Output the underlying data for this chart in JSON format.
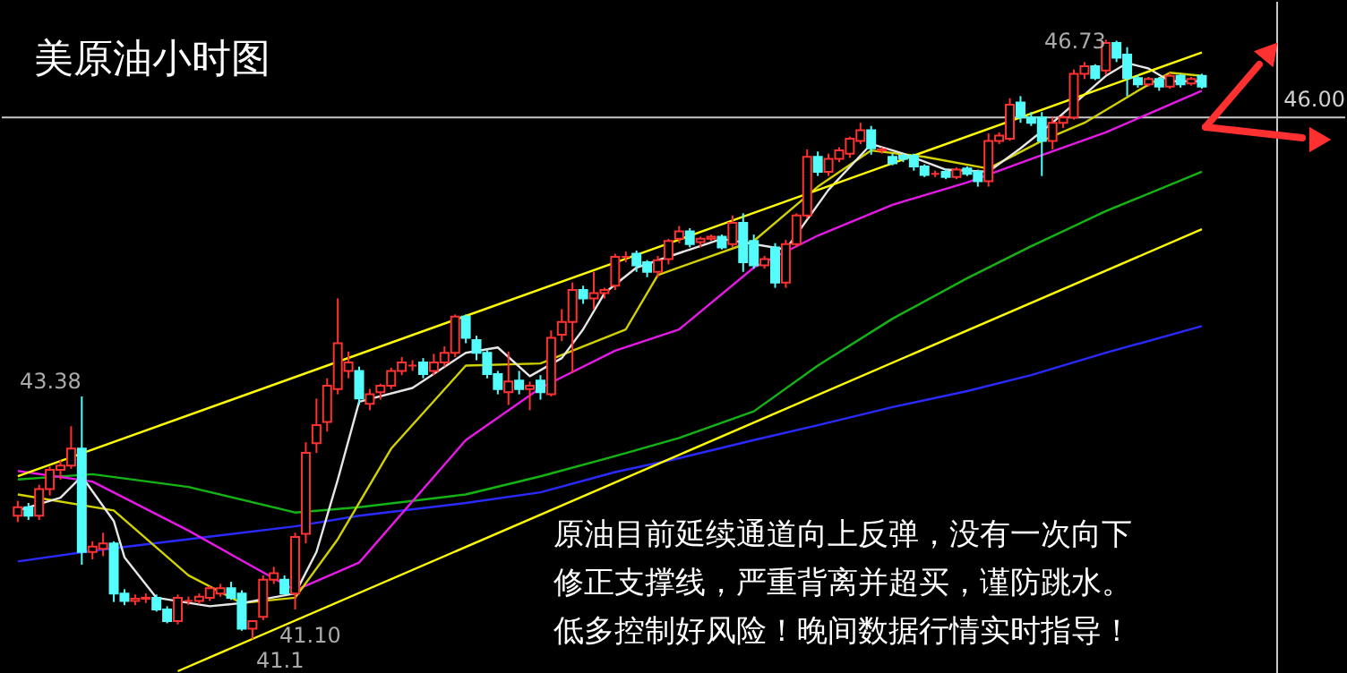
{
  "chart_data": {
    "type": "candlestick",
    "title": "美原油小时图",
    "categories": [
      null,
      null,
      null,
      null,
      null,
      null,
      null,
      null,
      null,
      null,
      null,
      null,
      null,
      null,
      null,
      null,
      null,
      null,
      null,
      null,
      null,
      null,
      null,
      null,
      null,
      null,
      null,
      null,
      null,
      null,
      null,
      null,
      null,
      null,
      null,
      null,
      null,
      null,
      null,
      null,
      null,
      null,
      null,
      null,
      null,
      null,
      null,
      null,
      null,
      null,
      null,
      null,
      null,
      null,
      null,
      null,
      null,
      null,
      null,
      null,
      null,
      null,
      null,
      null,
      null,
      null,
      null,
      null,
      null,
      null,
      null,
      null,
      null,
      null,
      null,
      null,
      null,
      null,
      null,
      null,
      null,
      null,
      null,
      null,
      null,
      null,
      null,
      null,
      null,
      null,
      null,
      null,
      null,
      null,
      null,
      null,
      null,
      null,
      null,
      null,
      null,
      null,
      null,
      null,
      null,
      null,
      null,
      null,
      null,
      null,
      null,
      null
    ],
    "ohlc": [
      [
        42.26,
        42.4,
        42.2,
        42.34
      ],
      [
        42.34,
        42.38,
        42.22,
        42.26
      ],
      [
        42.26,
        42.55,
        42.22,
        42.51
      ],
      [
        42.51,
        42.72,
        42.45,
        42.69
      ],
      [
        42.69,
        42.78,
        42.6,
        42.73
      ],
      [
        42.73,
        43.1,
        42.7,
        42.89
      ],
      [
        42.89,
        43.38,
        41.8,
        41.92
      ],
      [
        41.92,
        42.02,
        41.85,
        41.97
      ],
      [
        41.95,
        42.1,
        41.88,
        42.0
      ],
      [
        42.0,
        42.02,
        41.45,
        41.53
      ],
      [
        41.53,
        41.57,
        41.42,
        41.46
      ],
      [
        41.46,
        41.52,
        41.42,
        41.48
      ],
      [
        41.48,
        41.53,
        41.44,
        41.49
      ],
      [
        41.49,
        41.52,
        41.36,
        41.38
      ],
      [
        41.38,
        41.41,
        41.25,
        41.27
      ],
      [
        41.27,
        41.52,
        41.24,
        41.49
      ],
      [
        41.46,
        41.5,
        41.42,
        41.46
      ],
      [
        41.46,
        41.53,
        41.43,
        41.5
      ],
      [
        41.49,
        41.6,
        41.46,
        41.58
      ],
      [
        41.53,
        41.62,
        41.5,
        41.58
      ],
      [
        41.58,
        41.64,
        41.47,
        41.49
      ],
      [
        41.53,
        41.56,
        41.18,
        41.2
      ],
      [
        41.2,
        41.28,
        41.1,
        41.27
      ],
      [
        41.31,
        41.7,
        41.28,
        41.66
      ],
      [
        41.66,
        41.78,
        41.62,
        41.72
      ],
      [
        41.66,
        41.7,
        41.52,
        41.53
      ],
      [
        41.53,
        42.1,
        41.38,
        42.06
      ],
      [
        42.09,
        42.95,
        42.0,
        42.85
      ],
      [
        42.94,
        43.36,
        42.85,
        43.11
      ],
      [
        43.14,
        43.55,
        43.05,
        43.48
      ],
      [
        43.45,
        44.3,
        43.4,
        43.88
      ],
      [
        43.62,
        43.8,
        43.55,
        43.7
      ],
      [
        43.62,
        43.66,
        43.3,
        43.36
      ],
      [
        43.31,
        43.45,
        43.25,
        43.4
      ],
      [
        43.42,
        43.5,
        43.35,
        43.48
      ],
      [
        43.48,
        43.65,
        43.45,
        43.62
      ],
      [
        43.62,
        43.75,
        43.58,
        43.7
      ],
      [
        43.67,
        43.72,
        43.62,
        43.67
      ],
      [
        43.7,
        43.74,
        43.55,
        43.59
      ],
      [
        43.62,
        43.78,
        43.58,
        43.7
      ],
      [
        43.7,
        43.85,
        43.66,
        43.79
      ],
      [
        43.79,
        44.15,
        43.75,
        44.13
      ],
      [
        44.13,
        44.15,
        43.88,
        43.93
      ],
      [
        43.91,
        43.95,
        43.72,
        43.79
      ],
      [
        43.79,
        43.82,
        43.55,
        43.59
      ],
      [
        43.59,
        43.62,
        43.4,
        43.45
      ],
      [
        43.42,
        43.8,
        43.3,
        43.52
      ],
      [
        43.53,
        43.62,
        43.4,
        43.45
      ],
      [
        43.45,
        43.52,
        43.25,
        43.48
      ],
      [
        43.53,
        43.58,
        43.35,
        43.42
      ],
      [
        43.4,
        44.0,
        43.38,
        43.93
      ],
      [
        43.96,
        44.2,
        43.9,
        44.08
      ],
      [
        44.08,
        44.45,
        43.6,
        44.38
      ],
      [
        44.38,
        44.42,
        44.25,
        44.3
      ],
      [
        44.3,
        44.55,
        44.2,
        44.35
      ],
      [
        44.35,
        44.4,
        44.3,
        44.38
      ],
      [
        44.42,
        44.72,
        44.38,
        44.69
      ],
      [
        44.69,
        44.74,
        44.64,
        44.69
      ],
      [
        44.72,
        44.75,
        44.55,
        44.61
      ],
      [
        44.64,
        44.66,
        44.5,
        44.55
      ],
      [
        44.55,
        44.7,
        44.5,
        44.66
      ],
      [
        44.67,
        44.86,
        44.62,
        44.84
      ],
      [
        44.86,
        44.98,
        44.82,
        44.93
      ],
      [
        44.93,
        44.96,
        44.78,
        44.81
      ],
      [
        44.83,
        44.88,
        44.78,
        44.86
      ],
      [
        44.86,
        44.9,
        44.84,
        44.88
      ],
      [
        44.88,
        44.9,
        44.76,
        44.78
      ],
      [
        44.81,
        45.08,
        44.78,
        45.01
      ],
      [
        45.01,
        45.1,
        44.55,
        44.64
      ],
      [
        44.84,
        44.9,
        44.58,
        44.61
      ],
      [
        44.61,
        44.7,
        44.58,
        44.67
      ],
      [
        44.78,
        44.82,
        44.4,
        44.45
      ],
      [
        44.45,
        44.85,
        44.4,
        44.81
      ],
      [
        44.81,
        45.1,
        44.78,
        45.08
      ],
      [
        45.08,
        45.7,
        45.05,
        45.63
      ],
      [
        45.63,
        45.68,
        45.45,
        45.49
      ],
      [
        45.49,
        45.66,
        45.45,
        45.61
      ],
      [
        45.61,
        45.72,
        45.58,
        45.69
      ],
      [
        45.66,
        45.82,
        45.62,
        45.8
      ],
      [
        45.78,
        45.95,
        45.75,
        45.88
      ],
      [
        45.88,
        45.92,
        45.65,
        45.71
      ],
      [
        45.69,
        45.72,
        45.66,
        45.7
      ],
      [
        45.63,
        45.66,
        45.55,
        45.57
      ],
      [
        45.64,
        45.66,
        45.58,
        45.61
      ],
      [
        45.64,
        45.66,
        45.5,
        45.54
      ],
      [
        45.54,
        45.56,
        45.44,
        45.46
      ],
      [
        45.47,
        45.5,
        45.44,
        45.47
      ],
      [
        45.49,
        45.52,
        45.42,
        45.44
      ],
      [
        45.44,
        45.53,
        45.42,
        45.51
      ],
      [
        45.52,
        45.54,
        45.45,
        45.47
      ],
      [
        45.49,
        45.51,
        45.35,
        45.4
      ],
      [
        45.4,
        45.85,
        45.35,
        45.78
      ],
      [
        45.78,
        45.86,
        45.75,
        45.83
      ],
      [
        45.8,
        46.18,
        45.78,
        46.12
      ],
      [
        46.14,
        46.2,
        45.95,
        46.0
      ],
      [
        46.0,
        46.05,
        45.92,
        45.95
      ],
      [
        46.0,
        46.05,
        45.45,
        45.78
      ],
      [
        45.78,
        46.0,
        45.7,
        45.95
      ],
      [
        45.95,
        46.02,
        45.9,
        46.0
      ],
      [
        46.0,
        46.45,
        45.98,
        46.41
      ],
      [
        46.41,
        46.52,
        46.36,
        46.48
      ],
      [
        46.48,
        46.5,
        46.35,
        46.37
      ],
      [
        46.44,
        46.73,
        46.4,
        46.7
      ],
      [
        46.7,
        46.72,
        46.52,
        46.56
      ],
      [
        46.59,
        46.66,
        46.2,
        46.37
      ],
      [
        46.37,
        46.4,
        46.28,
        46.31
      ],
      [
        46.31,
        46.38,
        46.29,
        46.36
      ],
      [
        46.36,
        46.38,
        46.25,
        46.29
      ],
      [
        46.29,
        46.42,
        46.27,
        46.39
      ],
      [
        46.39,
        46.41,
        46.28,
        46.31
      ],
      [
        46.32,
        46.38,
        46.3,
        46.36
      ],
      [
        46.39,
        46.41,
        46.27,
        46.29
      ]
    ],
    "series": [
      {
        "type": "line",
        "color": "#2a2aff",
        "values": [
          41.83,
          null,
          null,
          null,
          null,
          null,
          null,
          41.93,
          null,
          null,
          null,
          null,
          null,
          null,
          null,
          null,
          42.04,
          null,
          null,
          null,
          null,
          null,
          null,
          null,
          null,
          null,
          42.16,
          null,
          null,
          null,
          null,
          null,
          42.26,
          null,
          null,
          null,
          null,
          null,
          null,
          null,
          null,
          null,
          42.38,
          null,
          null,
          null,
          null,
          null,
          null,
          42.48,
          null,
          null,
          null,
          null,
          null,
          null,
          42.67,
          null,
          null,
          null,
          null,
          null,
          42.8,
          null,
          null,
          null,
          null,
          null,
          null,
          42.97,
          null,
          null,
          null,
          null,
          null,
          43.11,
          null,
          null,
          null,
          null,
          null,
          null,
          43.28,
          null,
          null,
          null,
          null,
          null,
          null,
          43.43,
          null,
          null,
          null,
          null,
          null,
          43.58,
          null,
          null,
          null,
          null,
          null,
          null,
          43.79,
          null,
          null,
          null,
          null,
          null,
          null,
          null,
          null,
          44.04
        ]
      },
      {
        "type": "line",
        "color": "#14b414",
        "values": [
          42.6,
          null,
          null,
          null,
          null,
          null,
          null,
          42.65,
          null,
          null,
          null,
          null,
          null,
          null,
          null,
          null,
          42.53,
          null,
          null,
          null,
          null,
          null,
          null,
          null,
          null,
          null,
          42.29,
          null,
          null,
          null,
          null,
          null,
          42.34,
          null,
          null,
          null,
          null,
          null,
          null,
          null,
          null,
          null,
          42.46,
          null,
          null,
          null,
          null,
          null,
          null,
          42.63,
          null,
          null,
          null,
          null,
          null,
          null,
          42.82,
          null,
          null,
          null,
          null,
          null,
          42.99,
          null,
          null,
          null,
          null,
          null,
          null,
          43.24,
          null,
          null,
          null,
          null,
          null,
          43.67,
          null,
          null,
          null,
          null,
          null,
          null,
          44.11,
          null,
          null,
          null,
          null,
          null,
          null,
          44.49,
          null,
          null,
          null,
          null,
          null,
          44.79,
          null,
          null,
          null,
          null,
          null,
          null,
          45.12,
          null,
          null,
          null,
          null,
          null,
          null,
          null,
          null,
          45.49
        ]
      },
      {
        "type": "line",
        "color": "#e619e6",
        "values": [
          42.68,
          null,
          null,
          null,
          null,
          null,
          null,
          42.58,
          null,
          null,
          null,
          null,
          null,
          null,
          null,
          null,
          42.12,
          null,
          null,
          null,
          null,
          null,
          null,
          null,
          null,
          null,
          41.56,
          null,
          null,
          null,
          null,
          null,
          41.82,
          null,
          null,
          null,
          null,
          null,
          null,
          null,
          null,
          null,
          42.97,
          null,
          null,
          null,
          null,
          null,
          null,
          43.46,
          null,
          null,
          null,
          null,
          null,
          null,
          43.81,
          null,
          null,
          null,
          null,
          null,
          44.01,
          null,
          null,
          null,
          null,
          null,
          null,
          44.59,
          null,
          null,
          null,
          null,
          null,
          44.89,
          null,
          null,
          null,
          null,
          null,
          null,
          45.18,
          null,
          null,
          null,
          null,
          null,
          null,
          45.39,
          null,
          null,
          null,
          null,
          null,
          45.61,
          null,
          null,
          null,
          null,
          null,
          null,
          45.86,
          null,
          null,
          null,
          null,
          null,
          null,
          null,
          null,
          46.25
        ]
      },
      {
        "type": "line",
        "color": "#d2d200",
        "values": [
          42.46,
          null,
          null,
          null,
          null,
          null,
          null,
          null,
          null,
          42.31,
          null,
          null,
          null,
          null,
          null,
          null,
          41.7,
          null,
          null,
          null,
          null,
          41.44,
          null,
          null,
          null,
          null,
          41.49,
          null,
          null,
          null,
          42.04,
          null,
          null,
          null,
          null,
          42.89,
          null,
          null,
          null,
          null,
          null,
          null,
          43.67,
          null,
          null,
          null,
          null,
          null,
          null,
          43.69,
          null,
          null,
          null,
          null,
          null,
          null,
          null,
          44.01,
          null,
          null,
          44.52,
          null,
          null,
          null,
          null,
          null,
          null,
          null,
          null,
          44.84,
          null,
          null,
          null,
          null,
          null,
          45.35,
          null,
          null,
          null,
          null,
          45.69,
          null,
          null,
          null,
          null,
          45.63,
          null,
          null,
          null,
          null,
          null,
          45.52,
          null,
          null,
          null,
          null,
          45.78,
          null,
          null,
          null,
          45.95,
          null,
          null,
          null,
          null,
          46.25,
          null,
          null,
          46.42,
          null,
          null,
          46.39
        ]
      },
      {
        "type": "line",
        "color": "#e6e6e6",
        "values": [
          42.31,
          null,
          null,
          null,
          42.43,
          null,
          42.63,
          null,
          null,
          42.21,
          41.87,
          null,
          null,
          41.49,
          null,
          null,
          null,
          null,
          41.41,
          null,
          null,
          41.44,
          null,
          null,
          null,
          null,
          41.53,
          null,
          41.92,
          null,
          42.6,
          null,
          43.33,
          null,
          null,
          null,
          null,
          43.46,
          null,
          null,
          null,
          null,
          43.79,
          null,
          null,
          43.84,
          null,
          null,
          43.57,
          null,
          null,
          43.74,
          null,
          44.01,
          null,
          44.35,
          null,
          null,
          44.59,
          null,
          null,
          null,
          null,
          44.76,
          null,
          null,
          44.86,
          null,
          null,
          null,
          null,
          null,
          44.76,
          null,
          null,
          null,
          45.32,
          null,
          null,
          null,
          45.75,
          null,
          null,
          45.66,
          null,
          null,
          null,
          45.51,
          null,
          null,
          null,
          45.49,
          null,
          null,
          45.71,
          null,
          null,
          45.95,
          null,
          null,
          null,
          null,
          46.39,
          null,
          46.51,
          null,
          46.46,
          null,
          46.34,
          null,
          null,
          46.34
        ]
      },
      {
        "type": "line",
        "color": "#ffff00",
        "values": [
          42.63,
          null,
          null,
          null,
          null,
          null,
          null,
          null,
          null,
          null,
          null,
          null,
          null,
          null,
          null,
          null,
          null,
          null,
          null,
          null,
          null,
          null,
          null,
          null,
          null,
          null,
          null,
          null,
          null,
          null,
          null,
          null,
          null,
          null,
          null,
          null,
          null,
          null,
          null,
          null,
          null,
          null,
          null,
          null,
          null,
          null,
          null,
          null,
          null,
          null,
          null,
          null,
          null,
          null,
          null,
          null,
          null,
          null,
          null,
          null,
          null,
          null,
          null,
          null,
          null,
          null,
          null,
          null,
          null,
          null,
          null,
          null,
          null,
          null,
          null,
          null,
          null,
          null,
          null,
          null,
          null,
          null,
          null,
          null,
          null,
          null,
          null,
          null,
          null,
          null,
          null,
          null,
          null,
          null,
          null,
          null,
          null,
          null,
          null,
          null,
          null,
          null,
          null,
          null,
          null,
          null,
          null,
          null,
          null,
          null,
          null,
          46.61
        ]
      },
      {
        "type": "line",
        "color": "#ffff00",
        "values": [
          null,
          null,
          null,
          null,
          null,
          null,
          null,
          null,
          null,
          null,
          null,
          null,
          null,
          null,
          null,
          40.8,
          null,
          null,
          null,
          null,
          null,
          null,
          null,
          null,
          null,
          null,
          null,
          null,
          null,
          null,
          null,
          null,
          null,
          null,
          null,
          null,
          null,
          null,
          null,
          null,
          null,
          null,
          null,
          null,
          null,
          null,
          null,
          null,
          null,
          null,
          null,
          null,
          null,
          null,
          null,
          null,
          null,
          null,
          null,
          null,
          null,
          null,
          null,
          null,
          null,
          null,
          null,
          null,
          null,
          null,
          null,
          null,
          null,
          null,
          null,
          null,
          null,
          null,
          null,
          null,
          null,
          null,
          null,
          null,
          null,
          null,
          null,
          null,
          null,
          null,
          null,
          null,
          null,
          null,
          null,
          null,
          null,
          null,
          null,
          null,
          null,
          null,
          null,
          null,
          null,
          null,
          null,
          null,
          null,
          null,
          null,
          44.95
        ]
      }
    ],
    "ref_lines": [
      {
        "axis": "y",
        "value": 46.0,
        "label": "46.00",
        "color": "#c8c8c8"
      }
    ],
    "annotations": [
      "43.38",
      "41.10",
      "46.73",
      "41.1",
      "原油目前延续通道向上反弹，没有一次向下修正支撑线，严重背离并超买，谨防跳水。低多控制好风险！晚间数据行情实时指导！"
    ]
  }
}
